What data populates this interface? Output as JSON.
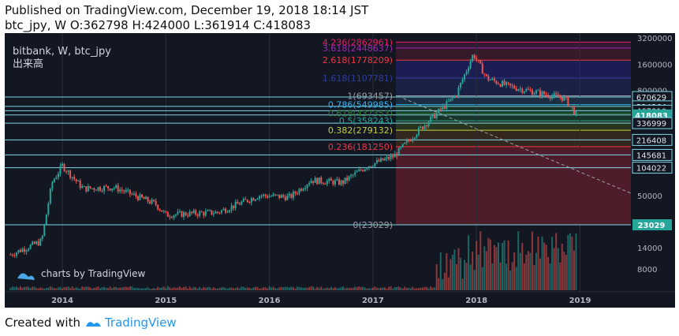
{
  "header": {
    "published": "Published on TradingView.com, December 19, 2018 18:14 JST",
    "ohlc": "btc_jpy, W O:362798 H:424000 L:361914 C:418083"
  },
  "footer": {
    "created_with": "Created with",
    "brand": "TradingView"
  },
  "colors": {
    "background": "#131722",
    "border": "#2a2e39",
    "candle_up": "#26a69a",
    "candle_down": "#ef5350",
    "horizontal_line": "#7fd6e6",
    "price_badge": "#26a69a",
    "fib_negative_zone": "#5a1f2c",
    "fib_gold": "#c6ce3c",
    "fib_618": "#2e7d32",
    "fib_blue": "#29b6f6",
    "fib_navy": "#2f3fa0",
    "fib_red": "#f23645",
    "fib_purple": "#9c27b0",
    "fib_magenta": "#e91e63",
    "fib_gray": "#9aa0a6"
  },
  "chart_data": {
    "type": "candlestick",
    "title": "bitbank, W, btc_jpy",
    "volume_label": "出来高",
    "watermark": "charts by TradingView",
    "yscale": "log",
    "ylim": [
      3000,
      3200000
    ],
    "x_ticks": [
      "2014",
      "2015",
      "2016",
      "2017",
      "2018",
      "2019"
    ],
    "y_ticks": [
      "3200000",
      "1600000",
      "800000",
      "400000",
      "200000",
      "100000",
      "50000",
      "14000",
      "8000"
    ],
    "price_badges": [
      {
        "value": "670629",
        "highlight": false
      },
      {
        "value": "524364",
        "highlight": false
      },
      {
        "value": "467810",
        "highlight": false
      },
      {
        "value": "418083",
        "highlight": true
      },
      {
        "value": "336999",
        "highlight": false
      },
      {
        "value": "216408",
        "highlight": false
      },
      {
        "value": "145681",
        "highlight": false
      },
      {
        "value": "104022",
        "highlight": false
      },
      {
        "value": "23029",
        "highlight": true
      }
    ],
    "fib_levels": [
      {
        "ratio": 4.236,
        "label": "4.236(2862961)",
        "price": 2862961,
        "color": "#e91e63"
      },
      {
        "ratio": 3.618,
        "label": "3.618(2448637)",
        "price": 2448637,
        "color": "#9c27b0"
      },
      {
        "ratio": 2.618,
        "label": "2.618(1778209)",
        "price": 1778209,
        "color": "#f23645"
      },
      {
        "ratio": 1.618,
        "label": "1.618(1107781)",
        "price": 1107781,
        "color": "#2f3fa0"
      },
      {
        "ratio": 1,
        "label": "1(693457)",
        "price": 693457,
        "color": "#9aa0a6"
      },
      {
        "ratio": 0.786,
        "label": "0.786(549985)",
        "price": 549985,
        "color": "#29b6f6"
      },
      {
        "ratio": 0.618,
        "label": "0.618(437353)",
        "price": 437353,
        "color": "#2e7d32"
      },
      {
        "ratio": 0.5,
        "label": "0.5(358243)",
        "price": 358243,
        "color": "#26a69a"
      },
      {
        "ratio": 0.382,
        "label": "0.382(279132)",
        "price": 279132,
        "color": "#c6ce3c"
      },
      {
        "ratio": 0.236,
        "label": "0.236(181250)",
        "price": 181250,
        "color": "#f23645"
      },
      {
        "ratio": 0,
        "label": "0(23029)",
        "price": 23029,
        "color": "#9aa0a6"
      }
    ],
    "series_weekly_close_approx": [
      {
        "x": "2013.5",
        "y": 10500
      },
      {
        "x": "2013.8",
        "y": 15000
      },
      {
        "x": "2013.9",
        "y": 70000
      },
      {
        "x": "2014.0",
        "y": 110000
      },
      {
        "x": "2014.2",
        "y": 60000
      },
      {
        "x": "2014.5",
        "y": 62000
      },
      {
        "x": "2014.9",
        "y": 40000
      },
      {
        "x": "2015.0",
        "y": 30000
      },
      {
        "x": "2015.5",
        "y": 32000
      },
      {
        "x": "2015.9",
        "y": 50000
      },
      {
        "x": "2016.2",
        "y": 48000
      },
      {
        "x": "2016.4",
        "y": 75000
      },
      {
        "x": "2016.7",
        "y": 70000
      },
      {
        "x": "2016.95",
        "y": 110000
      },
      {
        "x": "2017.2",
        "y": 140000
      },
      {
        "x": "2017.4",
        "y": 250000
      },
      {
        "x": "2017.6",
        "y": 420000
      },
      {
        "x": "2017.8",
        "y": 700000
      },
      {
        "x": "2017.97",
        "y": 2100000
      },
      {
        "x": "2018.1",
        "y": 1100000
      },
      {
        "x": "2018.3",
        "y": 900000
      },
      {
        "x": "2018.6",
        "y": 750000
      },
      {
        "x": "2018.85",
        "y": 650000
      },
      {
        "x": "2018.97",
        "y": 418083
      }
    ]
  }
}
